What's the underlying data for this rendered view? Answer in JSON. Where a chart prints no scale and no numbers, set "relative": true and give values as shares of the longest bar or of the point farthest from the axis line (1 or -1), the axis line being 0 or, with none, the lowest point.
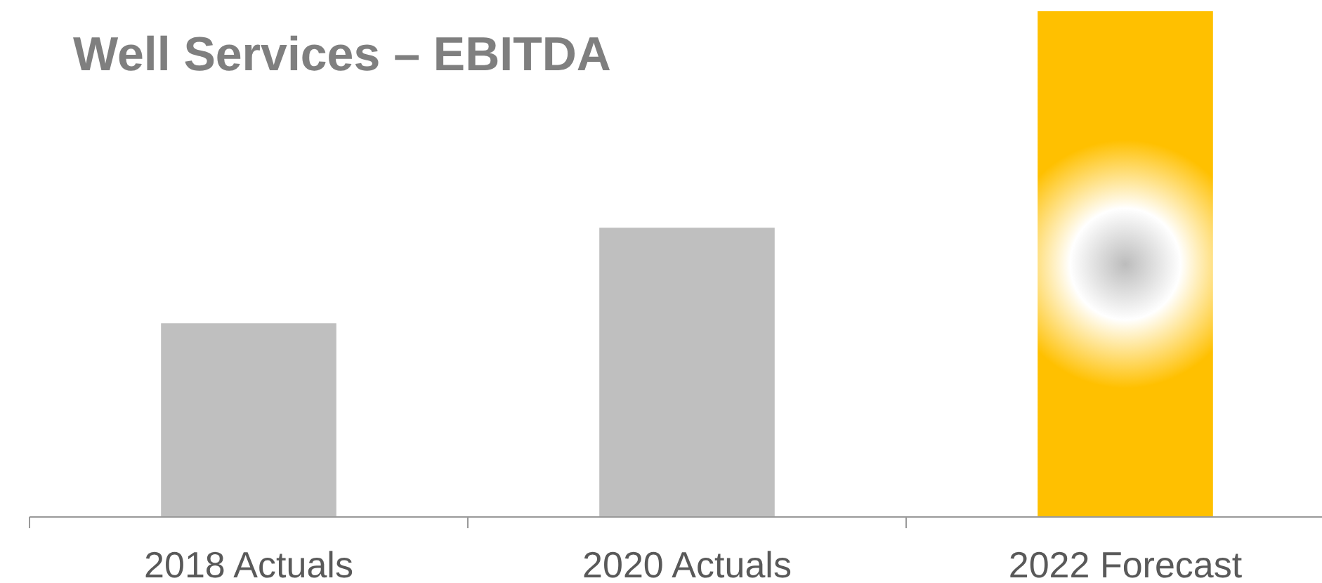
{
  "chart_data": {
    "type": "bar",
    "title": "Well Services – EBITDA",
    "categories": [
      "2018 Actuals",
      "2020 Actuals",
      "2022 Forecast"
    ],
    "values": [
      0.383,
      0.572,
      1
    ],
    "colors": [
      "#bfbfbf",
      "#bfbfbf",
      "#ffc000"
    ],
    "relative": true
  }
}
